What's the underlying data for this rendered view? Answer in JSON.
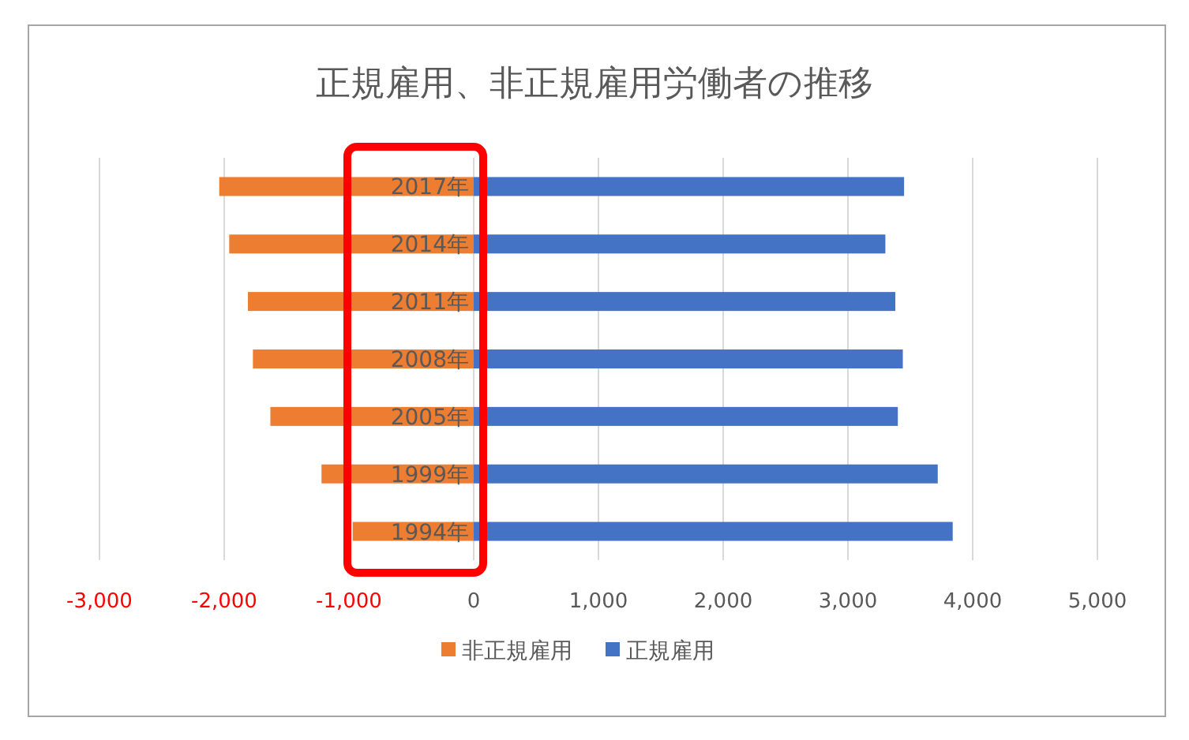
{
  "chart_data": {
    "type": "bar",
    "orientation": "horizontal",
    "stacked": true,
    "title": "正規雇用、非正規雇用労働者の推移",
    "categories": [
      "2017年",
      "2014年",
      "2011年",
      "2008年",
      "2005年",
      "1999年",
      "1994年"
    ],
    "series": [
      {
        "name": "非正規雇用",
        "color": "#ed7d31",
        "values": [
          -2040,
          -1960,
          -1810,
          -1770,
          -1630,
          -1220,
          -970
        ]
      },
      {
        "name": "正規雇用",
        "color": "#4472c4",
        "values": [
          3450,
          3300,
          3380,
          3440,
          3400,
          3720,
          3840
        ]
      }
    ],
    "xlim": [
      -3000,
      5000
    ],
    "xticks": [
      {
        "value": -3000,
        "label": "-3,000"
      },
      {
        "value": -2000,
        "label": "-2,000"
      },
      {
        "value": -1000,
        "label": "-1,000"
      },
      0,
      {
        "value": 1000,
        "label": "1,000"
      },
      {
        "value": 2000,
        "label": "2,000"
      },
      {
        "value": 3000,
        "label": "3,000"
      },
      {
        "value": 4000,
        "label": "4,000"
      },
      {
        "value": 5000,
        "label": "5,000"
      }
    ],
    "grid": "x",
    "legend": "bottom"
  }
}
